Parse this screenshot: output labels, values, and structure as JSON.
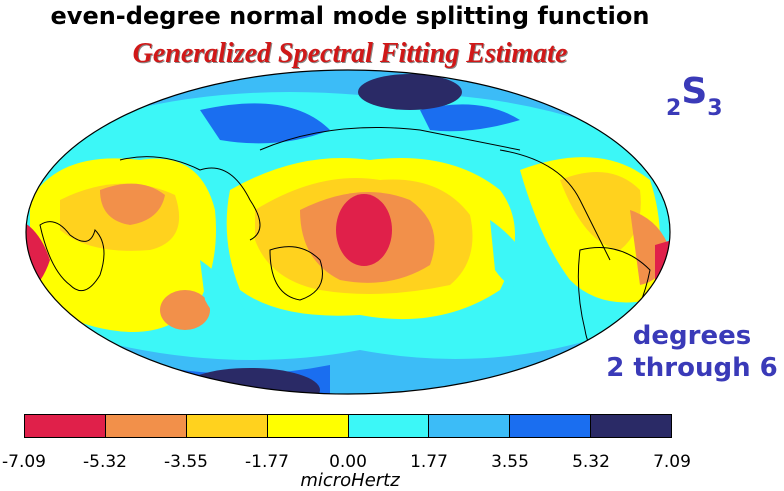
{
  "title": "even-degree normal mode splitting function",
  "subtitle": "Generalized Spectral Fitting Estimate",
  "mode": {
    "n": "2",
    "letter": "S",
    "l": "3"
  },
  "degrees_label": [
    "degrees",
    "2 through 6"
  ],
  "colorbar": {
    "ticks": [
      "-7.09",
      "-5.32",
      "-3.55",
      "-1.77",
      "0.00",
      "1.77",
      "3.55",
      "5.32",
      "7.09"
    ],
    "colors": [
      "#e0204a",
      "#f2904a",
      "#ffd21e",
      "#ffff00",
      "#3cf7f7",
      "#3cbcf7",
      "#1a6ef0",
      "#2a2a66"
    ],
    "unit": "microHertz"
  },
  "map": {
    "projection": "Hammer/Mollweide (Pacific-centered)",
    "colors": {
      "red": "#e0204a",
      "orange": "#f2904a",
      "gold": "#ffd21e",
      "yellow": "#ffff00",
      "cyan": "#3cf7f7",
      "lightblue": "#3cbcf7",
      "blue": "#1a6ef0",
      "navy": "#2a2a66"
    }
  }
}
